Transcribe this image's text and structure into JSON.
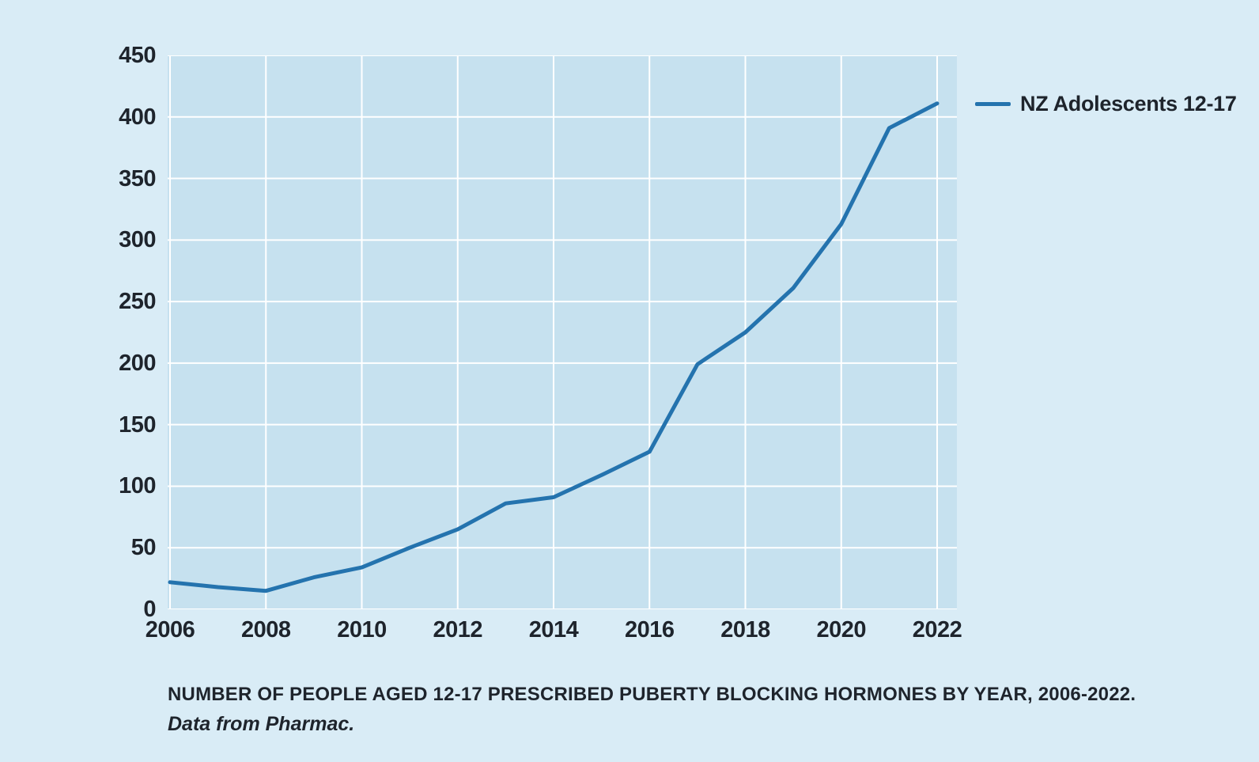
{
  "colors": {
    "page_background": "#d9ecf6",
    "plot_background": "#c6e1ef",
    "gridline": "#ffffff",
    "text": "#1e242c",
    "line": "#2473ae"
  },
  "legend": {
    "label": "NZ Adolescents 12-17"
  },
  "caption": {
    "line1": "NUMBER OF PEOPLE AGED 12-17 PRESCRIBED PUBERTY BLOCKING HORMONES BY YEAR, 2006-2022.",
    "line2": "Data from Pharmac."
  },
  "chart_data": {
    "type": "line",
    "title": "NUMBER OF PEOPLE AGED 12-17 PRESCRIBED PUBERTY BLOCKING HORMONES BY YEAR, 2006-2022.",
    "subtitle": "Data from Pharmac.",
    "x": [
      2006,
      2007,
      2008,
      2009,
      2010,
      2011,
      2012,
      2013,
      2014,
      2015,
      2016,
      2017,
      2018,
      2019,
      2020,
      2021,
      2022
    ],
    "series": [
      {
        "name": "NZ Adolescents 12-17",
        "color": "#2473ae",
        "values": [
          22,
          18,
          15,
          26,
          34,
          50,
          65,
          86,
          91,
          109,
          128,
          199,
          225,
          261,
          313,
          391,
          411
        ]
      }
    ],
    "x_tick_labels": [
      "2006",
      "2008",
      "2010",
      "2012",
      "2014",
      "2016",
      "2018",
      "2020",
      "2022"
    ],
    "x_tick_years": [
      2006,
      2008,
      2010,
      2012,
      2014,
      2016,
      2018,
      2020,
      2022
    ],
    "y_ticks": [
      0,
      50,
      100,
      150,
      200,
      250,
      300,
      350,
      400,
      450
    ],
    "ylim": [
      0,
      450
    ],
    "xlim": [
      2006,
      2022
    ],
    "xlabel": "",
    "ylabel": "",
    "grid": true,
    "grid_color": "#ffffff",
    "legend_position": "outside-upper-right"
  }
}
